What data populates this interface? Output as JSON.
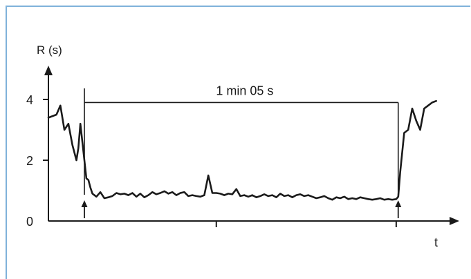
{
  "chart_data": {
    "type": "line",
    "ylabel": "R (s)",
    "xlabel": "t",
    "ylim": [
      0,
      4.3
    ],
    "yticks": [
      {
        "value": 0,
        "label": "0"
      },
      {
        "value": 2,
        "label": "2"
      },
      {
        "value": 4,
        "label": "4"
      }
    ],
    "x_tick_positions": [
      0.42,
      0.87
    ],
    "x_domain": [
      0,
      1.0
    ],
    "interval_annotation": {
      "label": "1 min 05 s",
      "start": 0.09,
      "end": 0.875,
      "level": 3.9
    },
    "series": [
      {
        "x": [
          0.0,
          0.02,
          0.03,
          0.04,
          0.05,
          0.06,
          0.07,
          0.075,
          0.08,
          0.085,
          0.09,
          0.095,
          0.1,
          0.105,
          0.11,
          0.12,
          0.13,
          0.14,
          0.15,
          0.16,
          0.17,
          0.18,
          0.19,
          0.2,
          0.21,
          0.22,
          0.23,
          0.24,
          0.25,
          0.26,
          0.27,
          0.28,
          0.29,
          0.3,
          0.31,
          0.32,
          0.33,
          0.34,
          0.35,
          0.36,
          0.37,
          0.38,
          0.39,
          0.4,
          0.41,
          0.42,
          0.43,
          0.44,
          0.45,
          0.46,
          0.47,
          0.48,
          0.49,
          0.5,
          0.51,
          0.52,
          0.53,
          0.54,
          0.55,
          0.56,
          0.57,
          0.58,
          0.59,
          0.6,
          0.61,
          0.62,
          0.63,
          0.64,
          0.65,
          0.66,
          0.67,
          0.68,
          0.69,
          0.7,
          0.71,
          0.72,
          0.73,
          0.74,
          0.75,
          0.76,
          0.77,
          0.78,
          0.79,
          0.8,
          0.81,
          0.82,
          0.83,
          0.84,
          0.85,
          0.86,
          0.87,
          0.875,
          0.88,
          0.89,
          0.9,
          0.91,
          0.92,
          0.93,
          0.94,
          0.95,
          0.96,
          0.97
        ],
        "y": [
          3.4,
          3.5,
          3.8,
          3.0,
          3.2,
          2.5,
          2.0,
          2.4,
          3.2,
          2.6,
          2.0,
          1.4,
          1.35,
          1.1,
          0.9,
          0.8,
          0.95,
          0.75,
          0.78,
          0.82,
          0.92,
          0.88,
          0.9,
          0.85,
          0.92,
          0.8,
          0.9,
          0.78,
          0.85,
          0.95,
          0.88,
          0.92,
          0.98,
          0.9,
          0.95,
          0.85,
          0.92,
          0.95,
          0.82,
          0.85,
          0.82,
          0.8,
          0.85,
          1.5,
          0.92,
          0.92,
          0.9,
          0.85,
          0.9,
          0.88,
          1.05,
          0.82,
          0.85,
          0.8,
          0.85,
          0.78,
          0.82,
          0.88,
          0.82,
          0.85,
          0.78,
          0.9,
          0.82,
          0.85,
          0.78,
          0.85,
          0.88,
          0.82,
          0.85,
          0.8,
          0.75,
          0.78,
          0.82,
          0.75,
          0.7,
          0.78,
          0.75,
          0.8,
          0.72,
          0.75,
          0.72,
          0.78,
          0.75,
          0.72,
          0.7,
          0.72,
          0.75,
          0.7,
          0.72,
          0.7,
          0.72,
          0.8,
          1.6,
          2.9,
          3.0,
          3.7,
          3.3,
          3.0,
          3.7,
          3.8,
          3.9,
          3.95
        ]
      }
    ],
    "arrows": [
      0.09,
      0.875
    ],
    "grid": false,
    "colors": {
      "frame": "#7fb2da",
      "ink": "#1a1a1a"
    }
  }
}
